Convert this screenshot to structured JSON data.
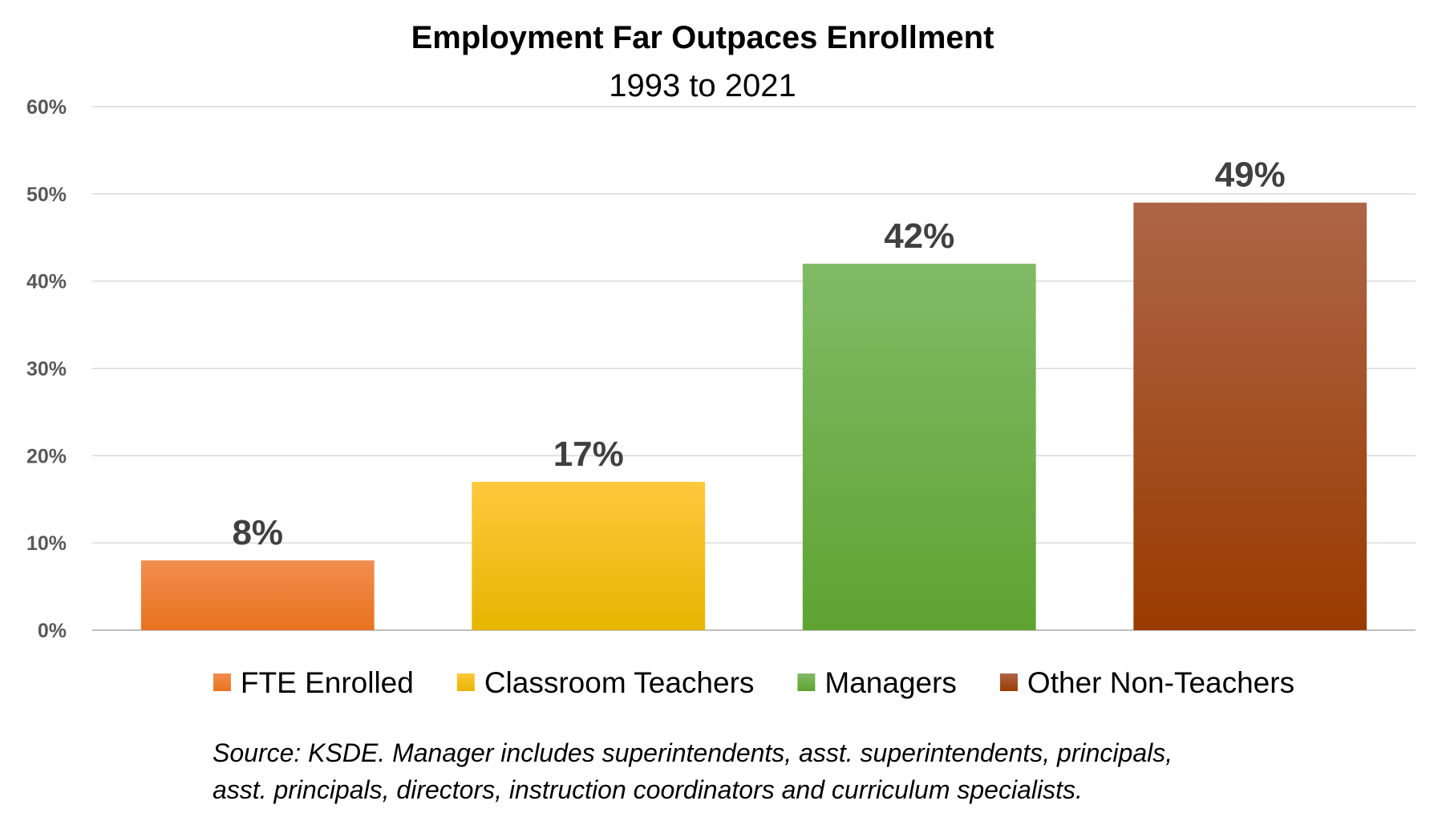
{
  "chart_data": {
    "type": "bar",
    "title": "Employment Far Outpaces Enrollment",
    "subtitle": "1993 to 2021",
    "xlabel": "",
    "ylabel": "",
    "categories": [
      "FTE Enrolled",
      "Classroom Teachers",
      "Managers",
      "Other Non-Teachers"
    ],
    "values": [
      8,
      17,
      42,
      49
    ],
    "data_labels": [
      "8%",
      "17%",
      "42%",
      "49%"
    ],
    "ylim": [
      0,
      60
    ],
    "yticks": [
      0,
      10,
      20,
      30,
      40,
      50,
      60
    ],
    "ytick_labels": [
      "0%",
      "10%",
      "20%",
      "30%",
      "40%",
      "50%",
      "60%"
    ],
    "colors": [
      {
        "top": "#F28E50",
        "bottom": "#E8731E"
      },
      {
        "top": "#FFC83D",
        "bottom": "#E6B500"
      },
      {
        "top": "#82BA66",
        "bottom": "#5EA332"
      },
      {
        "top": "#AD6547",
        "bottom": "#9A3B00"
      }
    ],
    "grid": true,
    "legend_position": "bottom"
  },
  "source_note": {
    "line1": "Source: KSDE. Manager includes superintendents, asst. superintendents, principals,",
    "line2": "asst. principals, directors, instruction coordinators and curriculum specialists."
  }
}
